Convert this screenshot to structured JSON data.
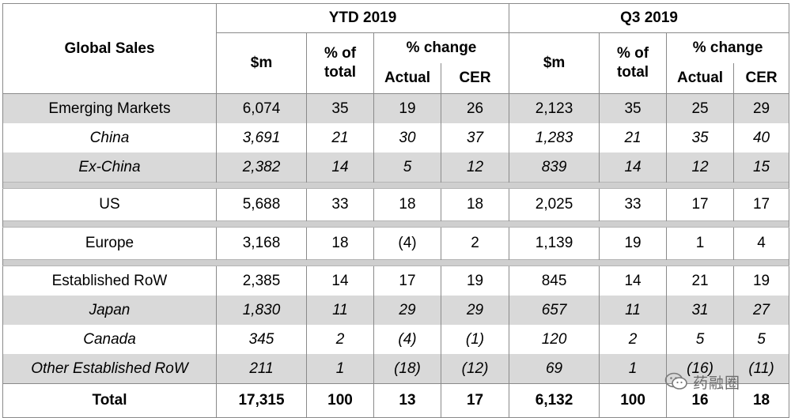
{
  "header": {
    "title": "Global Sales",
    "ytd": "YTD 2019",
    "q3": "Q3 2019",
    "sm": "$m",
    "pct_total": "% of total",
    "pct_change": "% change",
    "actual": "Actual",
    "cer": "CER"
  },
  "rows": [
    {
      "label": "Emerging Markets",
      "ytd_sm": "6,074",
      "ytd_pct": "35",
      "ytd_act": "19",
      "ytd_cer": "26",
      "q3_sm": "2,123",
      "q3_pct": "35",
      "q3_act": "25",
      "q3_cer": "29"
    },
    {
      "label": "China",
      "ytd_sm": "3,691",
      "ytd_pct": "21",
      "ytd_act": "30",
      "ytd_cer": "37",
      "q3_sm": "1,283",
      "q3_pct": "21",
      "q3_act": "35",
      "q3_cer": "40"
    },
    {
      "label": "Ex-China",
      "ytd_sm": "2,382",
      "ytd_pct": "14",
      "ytd_act": "5",
      "ytd_cer": "12",
      "q3_sm": "839",
      "q3_pct": "14",
      "q3_act": "12",
      "q3_cer": "15"
    },
    {
      "label": "US",
      "ytd_sm": "5,688",
      "ytd_pct": "33",
      "ytd_act": "18",
      "ytd_cer": "18",
      "q3_sm": "2,025",
      "q3_pct": "33",
      "q3_act": "17",
      "q3_cer": "17"
    },
    {
      "label": "Europe",
      "ytd_sm": "3,168",
      "ytd_pct": "18",
      "ytd_act": "(4)",
      "ytd_cer": "2",
      "q3_sm": "1,139",
      "q3_pct": "19",
      "q3_act": "1",
      "q3_cer": "4"
    },
    {
      "label": "Established RoW",
      "ytd_sm": "2,385",
      "ytd_pct": "14",
      "ytd_act": "17",
      "ytd_cer": "19",
      "q3_sm": "845",
      "q3_pct": "14",
      "q3_act": "21",
      "q3_cer": "19"
    },
    {
      "label": "Japan",
      "ytd_sm": "1,830",
      "ytd_pct": "11",
      "ytd_act": "29",
      "ytd_cer": "29",
      "q3_sm": "657",
      "q3_pct": "11",
      "q3_act": "31",
      "q3_cer": "27"
    },
    {
      "label": "Canada",
      "ytd_sm": "345",
      "ytd_pct": "2",
      "ytd_act": "(4)",
      "ytd_cer": "(1)",
      "q3_sm": "120",
      "q3_pct": "2",
      "q3_act": "5",
      "q3_cer": "5"
    },
    {
      "label": "Other Established RoW",
      "ytd_sm": "211",
      "ytd_pct": "1",
      "ytd_act": "(18)",
      "ytd_cer": "(12)",
      "q3_sm": "69",
      "q3_pct": "1",
      "q3_act": "(16)",
      "q3_cer": "(11)"
    }
  ],
  "total": {
    "label": "Total",
    "ytd_sm": "17,315",
    "ytd_pct": "100",
    "ytd_act": "13",
    "ytd_cer": "17",
    "q3_sm": "6,132",
    "q3_pct": "100",
    "q3_act": "16",
    "q3_cer": "18"
  },
  "watermark": {
    "text": "药融圈",
    "icon": "wechat-icon"
  },
  "colors": {
    "shaded_row": "#d9d9d9",
    "separator": "#cfcfcf",
    "border": "#8a8a8a"
  }
}
